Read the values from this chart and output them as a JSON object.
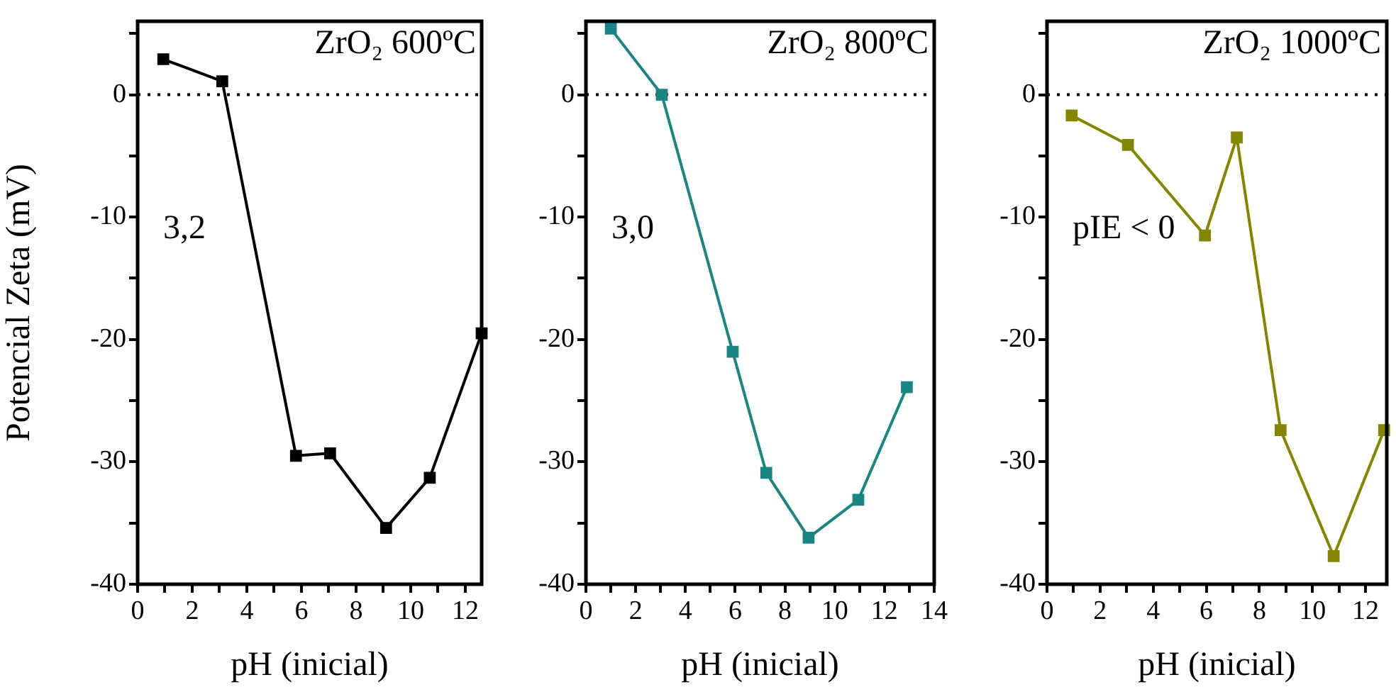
{
  "chart_data": [
    {
      "type": "line",
      "title": "ZrO₂ 600ºC",
      "xlabel": "pH (inicial)",
      "ylabel": "Potencial Zeta (mV)",
      "annotations": [
        "3,2"
      ],
      "marker": "square",
      "color": "#000000",
      "x": [
        0.94,
        3.1,
        5.8,
        7.05,
        9.1,
        10.7,
        12.6
      ],
      "values": [
        2.9,
        1.1,
        -29.5,
        -29.3,
        -35.4,
        -31.3,
        -19.5
      ],
      "xlim": [
        0,
        12.6
      ],
      "ylim": [
        -40,
        6
      ],
      "xticks": [
        0,
        {
          "value": 1,
          "label": null
        },
        2,
        {
          "value": 3,
          "label": null
        },
        4,
        {
          "value": 5,
          "label": null
        },
        6,
        {
          "value": 7,
          "label": null
        },
        8,
        {
          "value": 9,
          "label": null
        },
        10,
        {
          "value": 11,
          "label": null
        },
        12
      ],
      "yticks": [
        -40,
        {
          "value": -35,
          "label": null
        },
        -30,
        {
          "value": -25,
          "label": null
        },
        -20,
        {
          "value": -15,
          "label": null
        },
        -10,
        {
          "value": -5,
          "label": null
        },
        0,
        {
          "value": 5,
          "label": null
        }
      ],
      "ref_lines": [
        {
          "axis": "y",
          "value": 0,
          "line_style": "dotted",
          "color": "#000000"
        }
      ]
    },
    {
      "type": "line",
      "title": "ZrO₂ 800ºC",
      "xlabel": "pH (inicial)",
      "annotations": [
        "3,0"
      ],
      "marker": "square",
      "color": "#1a8585",
      "x": [
        1.0,
        3.05,
        5.9,
        7.25,
        8.95,
        10.95,
        12.9
      ],
      "values": [
        5.4,
        0,
        -21.0,
        -30.9,
        -36.2,
        -33.1,
        -23.9
      ],
      "xlim": [
        0,
        14
      ],
      "ylim": [
        -40,
        6
      ],
      "xticks": [
        0,
        {
          "value": 1,
          "label": null
        },
        2,
        {
          "value": 3,
          "label": null
        },
        4,
        {
          "value": 5,
          "label": null
        },
        6,
        {
          "value": 7,
          "label": null
        },
        8,
        {
          "value": 9,
          "label": null
        },
        10,
        {
          "value": 11,
          "label": null
        },
        12,
        {
          "value": 13,
          "label": null
        },
        14
      ],
      "yticks": [
        -40,
        {
          "value": -35,
          "label": null
        },
        -30,
        {
          "value": -25,
          "label": null
        },
        -20,
        {
          "value": -15,
          "label": null
        },
        -10,
        {
          "value": -5,
          "label": null
        },
        0,
        {
          "value": 5,
          "label": null
        }
      ],
      "ref_lines": [
        {
          "axis": "y",
          "value": 0,
          "line_style": "dotted",
          "color": "#000000"
        }
      ]
    },
    {
      "type": "line",
      "title": "ZrO₂ 1000ºC",
      "xlabel": "pH (inicial)",
      "annotations": [
        "pIE < 0"
      ],
      "marker": "square",
      "color": "#858500",
      "x": [
        0.93,
        3.05,
        5.95,
        7.15,
        8.8,
        10.8,
        12.7
      ],
      "values": [
        -1.7,
        -4.1,
        -11.5,
        -3.5,
        -27.4,
        -37.7,
        -27.4
      ],
      "xlim": [
        0,
        12.8
      ],
      "ylim": [
        -40,
        6
      ],
      "xticks": [
        0,
        {
          "value": 1,
          "label": null
        },
        2,
        {
          "value": 3,
          "label": null
        },
        4,
        {
          "value": 5,
          "label": null
        },
        6,
        {
          "value": 7,
          "label": null
        },
        8,
        {
          "value": 9,
          "label": null
        },
        10,
        {
          "value": 11,
          "label": null
        },
        12
      ],
      "yticks": [
        -40,
        {
          "value": -35,
          "label": null
        },
        -30,
        {
          "value": -25,
          "label": null
        },
        -20,
        {
          "value": -15,
          "label": null
        },
        -10,
        {
          "value": -5,
          "label": null
        },
        0,
        {
          "value": 5,
          "label": null
        }
      ],
      "ref_lines": [
        {
          "axis": "y",
          "value": 0,
          "line_style": "dotted",
          "color": "#000000"
        }
      ]
    }
  ]
}
